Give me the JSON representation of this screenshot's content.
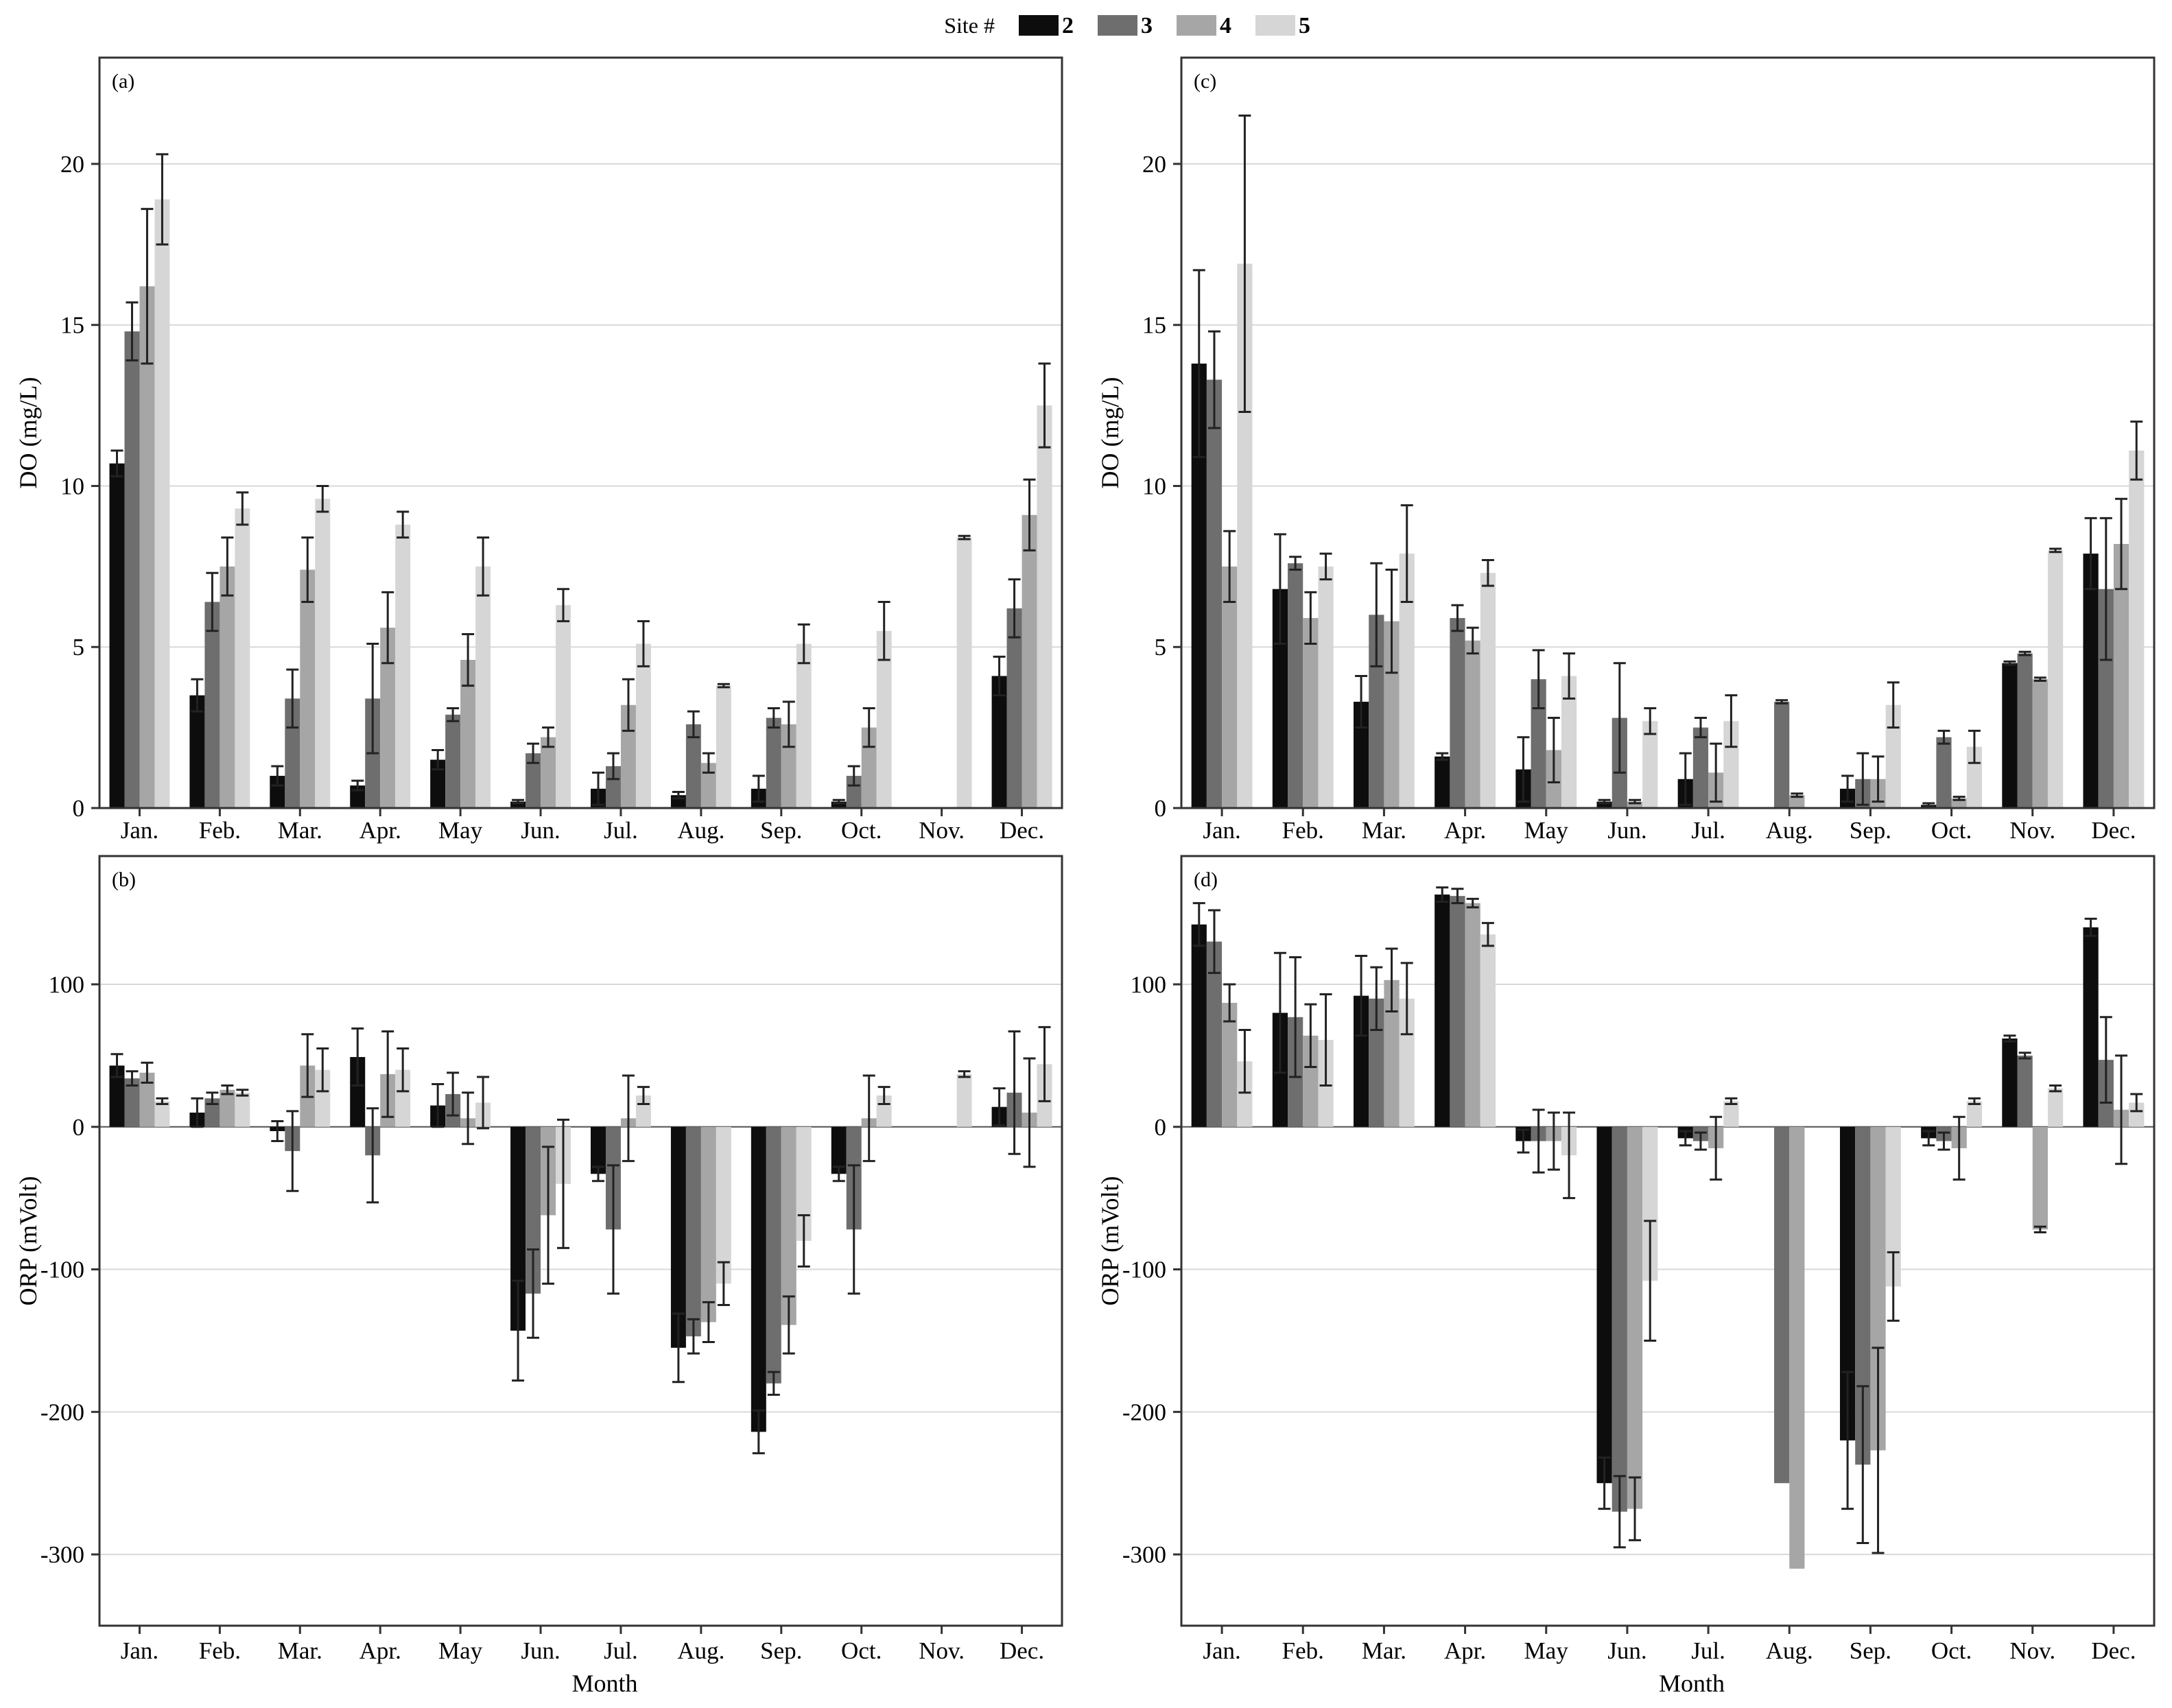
{
  "legend": {
    "title": "Site #",
    "entries": [
      "2",
      "3",
      "4",
      "5"
    ]
  },
  "colors": {
    "site_2": "#0d0d0d",
    "site_3": "#6e6e6e",
    "site_4": "#a6a6a6",
    "site_5": "#d6d6d6",
    "frame": "#333333",
    "grid": "#d9d9d9"
  },
  "chart_data": [
    {
      "id": "a",
      "type": "bar",
      "panel_label": "(a)",
      "xlabel": "",
      "ylabel": "DO (mg/L)",
      "ylim": [
        0,
        23.3
      ],
      "yticks": [
        0,
        5,
        10,
        15,
        20
      ],
      "grid": true,
      "categories": [
        "Jan.",
        "Feb.",
        "Mar.",
        "Apr.",
        "May",
        "Jun.",
        "Jul.",
        "Aug.",
        "Sep.",
        "Oct.",
        "Nov.",
        "Dec."
      ],
      "series": [
        {
          "name": "2",
          "values": [
            10.7,
            3.5,
            1.0,
            0.7,
            1.5,
            0.2,
            0.6,
            0.4,
            0.6,
            0.2,
            null,
            4.1
          ],
          "errors": [
            0.4,
            0.5,
            0.3,
            0.15,
            0.3,
            0.05,
            0.5,
            0.1,
            0.4,
            0.05,
            null,
            0.6
          ]
        },
        {
          "name": "3",
          "values": [
            14.8,
            6.4,
            3.4,
            3.4,
            2.9,
            1.7,
            1.3,
            2.6,
            2.8,
            1.0,
            null,
            6.2
          ],
          "errors": [
            0.9,
            0.9,
            0.9,
            1.7,
            0.2,
            0.3,
            0.4,
            0.4,
            0.3,
            0.3,
            null,
            0.9
          ]
        },
        {
          "name": "4",
          "values": [
            16.2,
            7.5,
            7.4,
            5.6,
            4.6,
            2.2,
            3.2,
            1.4,
            2.6,
            2.5,
            null,
            9.1
          ],
          "errors": [
            2.4,
            0.9,
            1.0,
            1.1,
            0.8,
            0.3,
            0.8,
            0.3,
            0.7,
            0.6,
            null,
            1.1
          ]
        },
        {
          "name": "5",
          "values": [
            18.9,
            9.3,
            9.6,
            8.8,
            7.5,
            6.3,
            5.1,
            3.8,
            5.1,
            5.5,
            8.4,
            12.5
          ],
          "errors": [
            1.4,
            0.5,
            0.4,
            0.4,
            0.9,
            0.5,
            0.7,
            0.05,
            0.6,
            0.9,
            0.05,
            1.3
          ]
        }
      ]
    },
    {
      "id": "c",
      "type": "bar",
      "panel_label": "(c)",
      "xlabel": "",
      "ylabel": "DO (mg/L)",
      "ylim": [
        0,
        23.3
      ],
      "yticks": [
        0,
        5,
        10,
        15,
        20
      ],
      "grid": true,
      "categories": [
        "Jan.",
        "Feb.",
        "Mar.",
        "Apr.",
        "May",
        "Jun.",
        "Jul.",
        "Aug.",
        "Sep.",
        "Oct.",
        "Nov.",
        "Dec."
      ],
      "series": [
        {
          "name": "2",
          "values": [
            13.8,
            6.8,
            3.3,
            1.6,
            1.2,
            0.2,
            0.9,
            null,
            0.6,
            0.1,
            4.5,
            7.9
          ],
          "errors": [
            2.9,
            1.7,
            0.8,
            0.1,
            1.0,
            0.05,
            0.8,
            null,
            0.4,
            0.05,
            0.05,
            1.1
          ]
        },
        {
          "name": "3",
          "values": [
            13.3,
            7.6,
            6.0,
            5.9,
            4.0,
            2.8,
            2.5,
            3.3,
            0.9,
            2.2,
            4.8,
            6.8
          ],
          "errors": [
            1.5,
            0.2,
            1.6,
            0.4,
            0.9,
            1.7,
            0.3,
            0.05,
            0.8,
            0.2,
            0.05,
            2.2
          ]
        },
        {
          "name": "4",
          "values": [
            7.5,
            5.9,
            5.8,
            5.2,
            1.8,
            0.2,
            1.1,
            0.4,
            0.9,
            0.3,
            4.0,
            8.2
          ],
          "errors": [
            1.1,
            0.8,
            1.6,
            0.4,
            1.0,
            0.05,
            0.9,
            0.05,
            0.7,
            0.05,
            0.05,
            1.4
          ]
        },
        {
          "name": "5",
          "values": [
            16.9,
            7.5,
            7.9,
            7.3,
            4.1,
            2.7,
            2.7,
            null,
            3.2,
            1.9,
            8.0,
            11.1
          ],
          "errors": [
            4.6,
            0.4,
            1.5,
            0.4,
            0.7,
            0.4,
            0.8,
            null,
            0.7,
            0.5,
            0.05,
            0.9
          ]
        }
      ]
    },
    {
      "id": "b",
      "type": "bar",
      "panel_label": "(b)",
      "xlabel": "Month",
      "ylabel": "ORP (mVolt)",
      "ylim": [
        -350,
        190
      ],
      "yticks": [
        -300,
        -200,
        -100,
        0,
        100
      ],
      "grid": true,
      "categories": [
        "Jan.",
        "Feb.",
        "Mar.",
        "Apr.",
        "May",
        "Jun.",
        "Jul.",
        "Aug.",
        "Sep.",
        "Oct.",
        "Nov.",
        "Dec."
      ],
      "series": [
        {
          "name": "2",
          "values": [
            43,
            10,
            -3,
            49,
            15,
            -143,
            -33,
            -155,
            -214,
            -33,
            null,
            14
          ],
          "errors": [
            8,
            10,
            7,
            20,
            15,
            35,
            5,
            24,
            15,
            5,
            null,
            13
          ]
        },
        {
          "name": "3",
          "values": [
            34,
            20,
            -17,
            -20,
            23,
            -117,
            -72,
            -147,
            -180,
            -72,
            null,
            24
          ],
          "errors": [
            5,
            4,
            28,
            33,
            15,
            31,
            45,
            12,
            8,
            45,
            null,
            43
          ]
        },
        {
          "name": "4",
          "values": [
            38,
            26,
            43,
            37,
            6,
            -62,
            6,
            -137,
            -139,
            6,
            null,
            10
          ],
          "errors": [
            7,
            3,
            22,
            30,
            18,
            48,
            30,
            14,
            20,
            30,
            null,
            38
          ]
        },
        {
          "name": "5",
          "values": [
            18,
            24,
            40,
            40,
            17,
            -40,
            22,
            -110,
            -80,
            22,
            37,
            44
          ],
          "errors": [
            2,
            2,
            15,
            15,
            18,
            45,
            6,
            15,
            18,
            6,
            2,
            26
          ]
        }
      ]
    },
    {
      "id": "d",
      "type": "bar",
      "panel_label": "(d)",
      "xlabel": "Month",
      "ylabel": "ORP (mVolt)",
      "ylim": [
        -350,
        190
      ],
      "yticks": [
        -300,
        -200,
        -100,
        0,
        100
      ],
      "grid": true,
      "categories": [
        "Jan.",
        "Feb.",
        "Mar.",
        "Apr.",
        "May",
        "Jun.",
        "Jul.",
        "Aug.",
        "Sep.",
        "Oct.",
        "Nov.",
        "Dec."
      ],
      "series": [
        {
          "name": "2",
          "values": [
            142,
            80,
            92,
            163,
            -10,
            -250,
            -8,
            null,
            -220,
            -8,
            62,
            140
          ],
          "errors": [
            15,
            42,
            28,
            5,
            8,
            18,
            5,
            null,
            48,
            5,
            2,
            6
          ]
        },
        {
          "name": "3",
          "values": [
            130,
            77,
            90,
            162,
            -10,
            -270,
            -10,
            -250,
            -237,
            -10,
            50,
            47
          ],
          "errors": [
            22,
            42,
            22,
            5,
            22,
            25,
            6,
            null,
            55,
            6,
            2,
            30
          ]
        },
        {
          "name": "4",
          "values": [
            87,
            64,
            103,
            157,
            -10,
            -268,
            -15,
            -310,
            -227,
            -15,
            -72,
            12
          ],
          "errors": [
            13,
            22,
            22,
            3,
            20,
            22,
            22,
            null,
            72,
            22,
            2,
            38
          ]
        },
        {
          "name": "5",
          "values": [
            46,
            61,
            90,
            135,
            -20,
            -108,
            18,
            null,
            -112,
            18,
            27,
            17
          ],
          "errors": [
            22,
            32,
            25,
            8,
            30,
            42,
            2,
            null,
            24,
            2,
            2,
            6
          ]
        }
      ]
    }
  ]
}
